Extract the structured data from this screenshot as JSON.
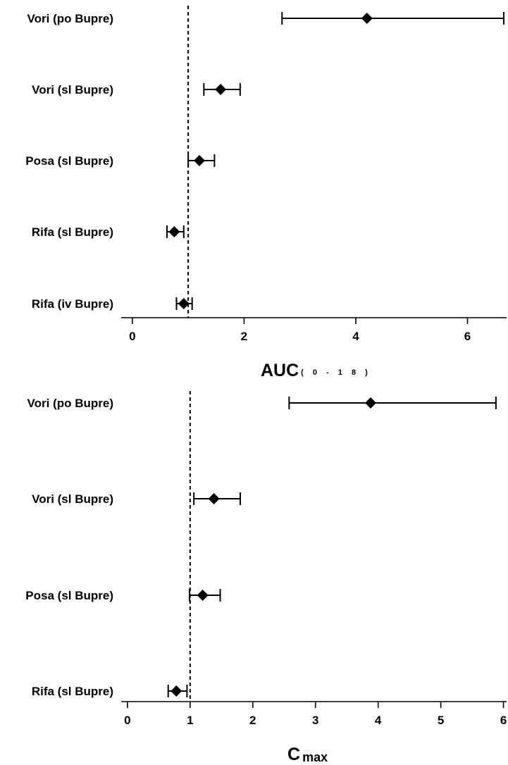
{
  "chart_data": [
    {
      "type": "forest",
      "xlabel": "AUC",
      "xlabel_subscript": "( 0 - 1 8 )",
      "reference_line": 1,
      "xlim": [
        -0.2,
        6.7
      ],
      "xticks": [
        "0",
        "2",
        "4",
        "6"
      ],
      "xtick_values": [
        0,
        2,
        4,
        6
      ],
      "grid": false,
      "series": [
        {
          "label": "Vori (po Bupre)",
          "estimate": 4.2,
          "lower": 2.68,
          "upper": 6.65
        },
        {
          "label": "Vori (sl Bupre)",
          "estimate": 1.58,
          "lower": 1.28,
          "upper": 1.93
        },
        {
          "label": "Posa (sl Bupre)",
          "estimate": 1.2,
          "lower": 1.0,
          "upper": 1.47
        },
        {
          "label": "Rifa (sl Bupre)",
          "estimate": 0.75,
          "lower": 0.62,
          "upper": 0.92
        },
        {
          "label": "Rifa (iv Bupre)",
          "estimate": 0.92,
          "lower": 0.79,
          "upper": 1.07
        }
      ]
    },
    {
      "type": "forest",
      "xlabel": "C",
      "xlabel_subscript": "max",
      "reference_line": 1,
      "xlim": [
        -0.1,
        6.05
      ],
      "xticks": [
        "0",
        "1",
        "2",
        "3",
        "4",
        "5",
        "6"
      ],
      "xtick_values": [
        0,
        1,
        2,
        3,
        4,
        5,
        6
      ],
      "grid": false,
      "series": [
        {
          "label": "Vori (po Bupre)",
          "estimate": 3.88,
          "lower": 2.58,
          "upper": 5.88
        },
        {
          "label": "Vori (sl Bupre)",
          "estimate": 1.38,
          "lower": 1.06,
          "upper": 1.8
        },
        {
          "label": "Posa (sl Bupre)",
          "estimate": 1.2,
          "lower": 0.99,
          "upper": 1.48
        },
        {
          "label": "Rifa (sl Bupre)",
          "estimate": 0.78,
          "lower": 0.65,
          "upper": 0.95
        }
      ]
    }
  ]
}
